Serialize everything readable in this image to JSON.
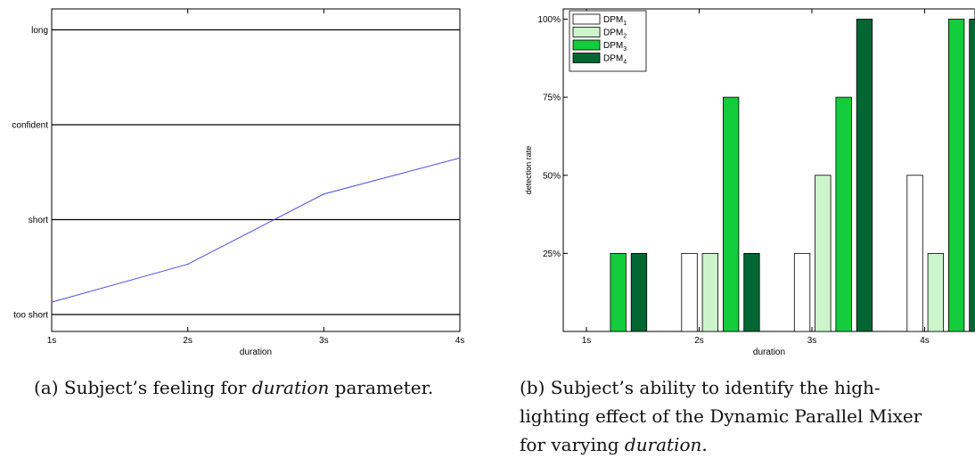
{
  "chart_data": [
    {
      "type": "line",
      "title": "",
      "xlabel": "duration",
      "ylabel": "",
      "categories": [
        "1s",
        "2s",
        "3s",
        "4s"
      ],
      "y_categories": [
        "too short",
        "short",
        "confident",
        "long"
      ],
      "ylim": [
        0,
        3.2
      ],
      "series": [
        {
          "name": "",
          "color": "#4f4fe6",
          "values": [
            0.13,
            0.53,
            1.27,
            1.65
          ]
        }
      ],
      "grid": "horizontal lines at each y category",
      "legend": "none"
    },
    {
      "type": "bar",
      "title": "",
      "xlabel": "duration",
      "ylabel": "detection rate",
      "categories": [
        "1s",
        "2s",
        "3s",
        "4s"
      ],
      "yticks": [
        "25%",
        "50%",
        "75%",
        "100%"
      ],
      "ylim": [
        0,
        1.05
      ],
      "legend": "top-left",
      "series": [
        {
          "name": "DPM",
          "sub": "1",
          "color": "#ffffff",
          "values": [
            0,
            0.25,
            0.25,
            0.5
          ]
        },
        {
          "name": "DPM",
          "sub": "2",
          "color": "#ccf5cc",
          "values": [
            0,
            0.25,
            0.5,
            0.25
          ]
        },
        {
          "name": "DPM",
          "sub": "3",
          "color": "#14cc3c",
          "values": [
            0.25,
            0.75,
            0.75,
            1.0
          ]
        },
        {
          "name": "DPM",
          "sub": "4",
          "color": "#006633",
          "values": [
            0.25,
            0.25,
            1.0,
            1.0
          ]
        }
      ]
    }
  ],
  "captions": {
    "a_prefix": "(a) Subject’s feeling for ",
    "a_emph": "duration",
    "a_suffix": " parameter.",
    "b_line1": "(b) Subject’s ability to identify the high-",
    "b_line2": "lighting effect of the Dynamic Parallel Mixer",
    "b_line3_prefix": "for varying ",
    "b_line3_emph": "duration",
    "b_line3_suffix": "."
  }
}
